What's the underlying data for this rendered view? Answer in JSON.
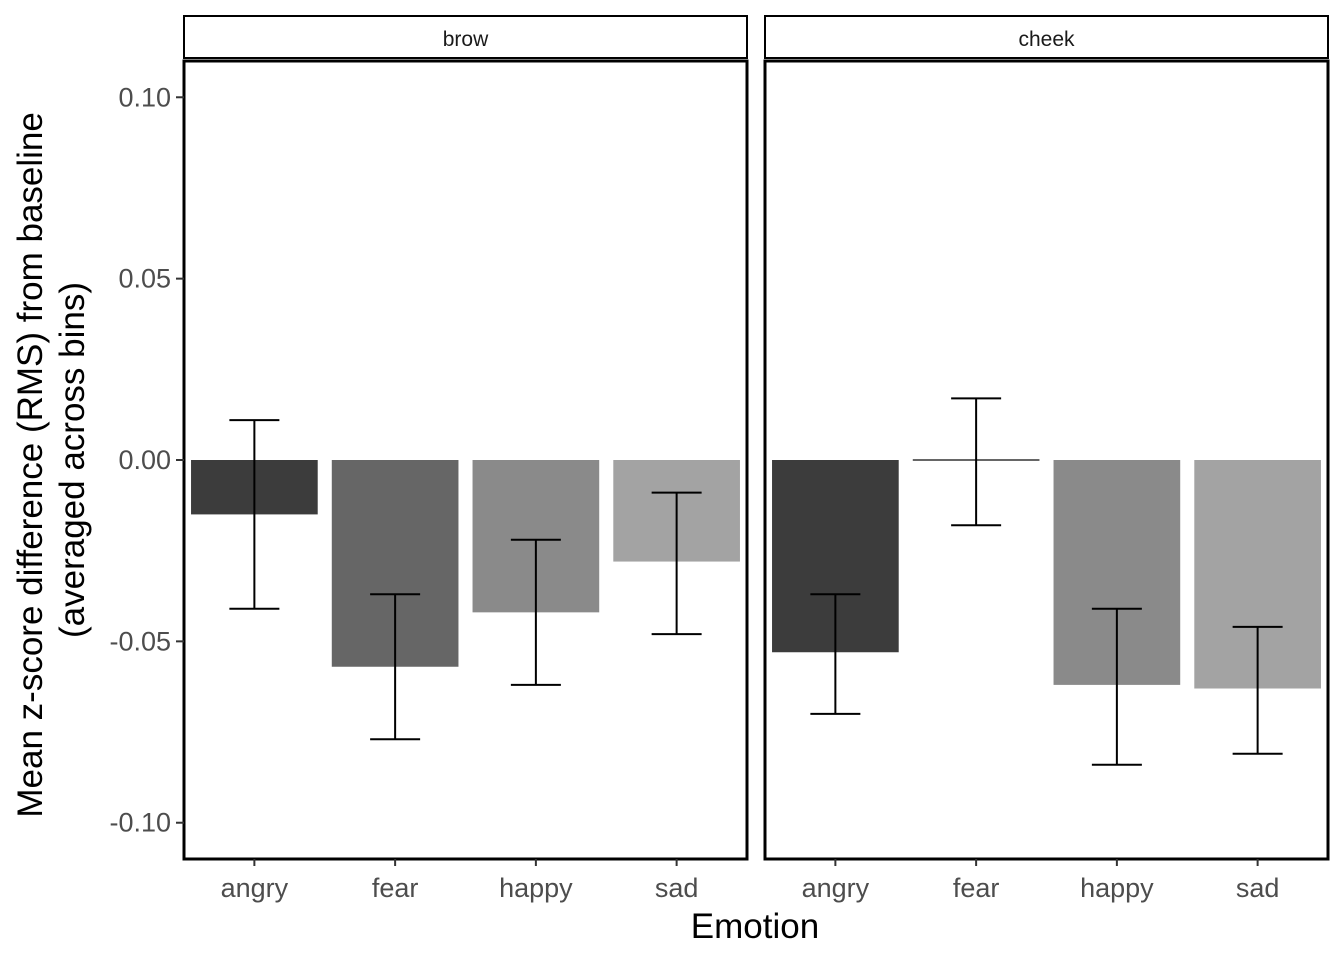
{
  "chart_data": {
    "type": "bar",
    "facet_variable": "region",
    "categories": [
      "angry",
      "fear",
      "happy",
      "sad"
    ],
    "xlabel": "Emotion",
    "ylabel_lines": [
      "Mean z-score difference (RMS) from baseline",
      "(averaged across bins)"
    ],
    "ylim": [
      -0.11,
      0.11
    ],
    "yticks": [
      0.1,
      0.05,
      0.0,
      -0.05,
      -0.1
    ],
    "ytick_labels": [
      "0.10",
      "0.05",
      "0.00",
      "-0.05",
      "-0.10"
    ],
    "bar_colors": {
      "angry": "#3c3c3c",
      "fear": "#666666",
      "happy": "#8a8a8a",
      "sad": "#a3a3a3"
    },
    "grid": false,
    "legend": "none",
    "panels": [
      {
        "name": "brow",
        "values": [
          -0.015,
          -0.057,
          -0.042,
          -0.028
        ],
        "error_low": [
          -0.041,
          -0.077,
          -0.062,
          -0.048
        ],
        "error_high": [
          0.011,
          -0.037,
          -0.022,
          -0.009
        ]
      },
      {
        "name": "cheek",
        "values": [
          -0.053,
          0.0,
          -0.062,
          -0.063
        ],
        "error_low": [
          -0.07,
          -0.018,
          -0.084,
          -0.081
        ],
        "error_high": [
          -0.037,
          0.017,
          -0.041,
          -0.046
        ]
      }
    ]
  }
}
